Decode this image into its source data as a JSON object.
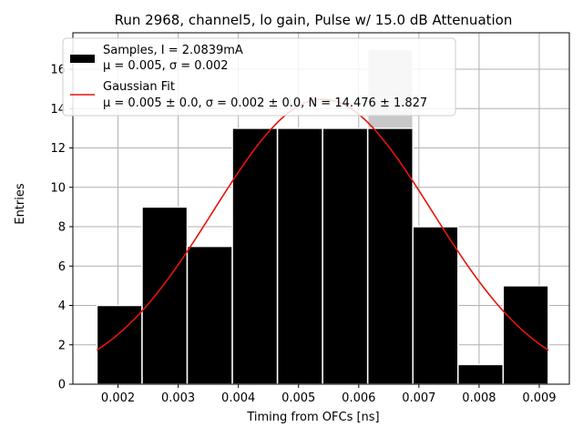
{
  "chart_data": {
    "type": "bar",
    "title": "Run 2968, channel5, lo gain, Pulse w/ 15.0 dB Attenuation",
    "xlabel": "Timing from OFCs [ns]",
    "ylabel": "Entries",
    "xlim": [
      0.00125,
      0.0095
    ],
    "ylim": [
      0,
      17.85
    ],
    "grid": true,
    "legend_position": "top-left",
    "x_ticks": [
      0.002,
      0.003,
      0.004,
      0.005,
      0.006,
      0.007,
      0.008,
      0.009
    ],
    "x_tick_labels": [
      "0.002",
      "0.003",
      "0.004",
      "0.005",
      "0.006",
      "0.007",
      "0.008",
      "0.009"
    ],
    "y_ticks": [
      0,
      2,
      4,
      6,
      8,
      10,
      12,
      14,
      16
    ],
    "y_tick_labels": [
      "0",
      "2",
      "4",
      "6",
      "8",
      "10",
      "12",
      "14",
      "16"
    ],
    "bins": [
      {
        "x0": 0.00165,
        "x1": 0.0024,
        "count": 4
      },
      {
        "x0": 0.0024,
        "x1": 0.00315,
        "count": 9
      },
      {
        "x0": 0.00315,
        "x1": 0.0039,
        "count": 7
      },
      {
        "x0": 0.0039,
        "x1": 0.00465,
        "count": 13
      },
      {
        "x0": 0.00465,
        "x1": 0.0054,
        "count": 13
      },
      {
        "x0": 0.0054,
        "x1": 0.00615,
        "count": 13
      },
      {
        "x0": 0.00615,
        "x1": 0.0069,
        "count": 17,
        "highlighted": true
      },
      {
        "x0": 0.0069,
        "x1": 0.00765,
        "count": 8
      },
      {
        "x0": 0.00765,
        "x1": 0.0084,
        "count": 1
      },
      {
        "x0": 0.0084,
        "x1": 0.00915,
        "count": 5
      }
    ],
    "fit": {
      "mu": 0.0054,
      "sigma": 0.00182,
      "N": 14.476,
      "x_start": 0.00165,
      "x_end": 0.00915
    },
    "colors": {
      "bars": "#000000",
      "highlight_bar": "#c8c8c8",
      "bar_edge": "#ffffff",
      "fit_line": "#e8120c",
      "grid": "#b0b0b0"
    },
    "legend": {
      "samples_line1": "Samples, I = 2.0839mA",
      "samples_line2": "μ = 0.005, σ = 0.002",
      "fit_line1": "Gaussian Fit",
      "fit_line2": "μ = 0.005 ± 0.0, σ = 0.002 ± 0.0, N = 14.476 ± 1.827"
    }
  }
}
